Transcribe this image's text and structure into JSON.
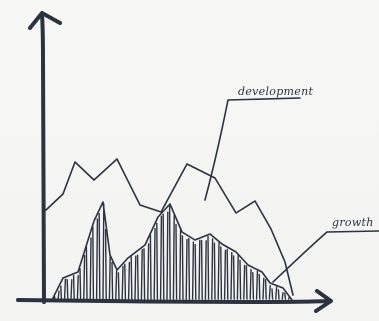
{
  "labels": {
    "development": "development",
    "growth": "growth"
  },
  "colors": {
    "ink": "#2b3340",
    "background": "#f6f6f4"
  }
}
